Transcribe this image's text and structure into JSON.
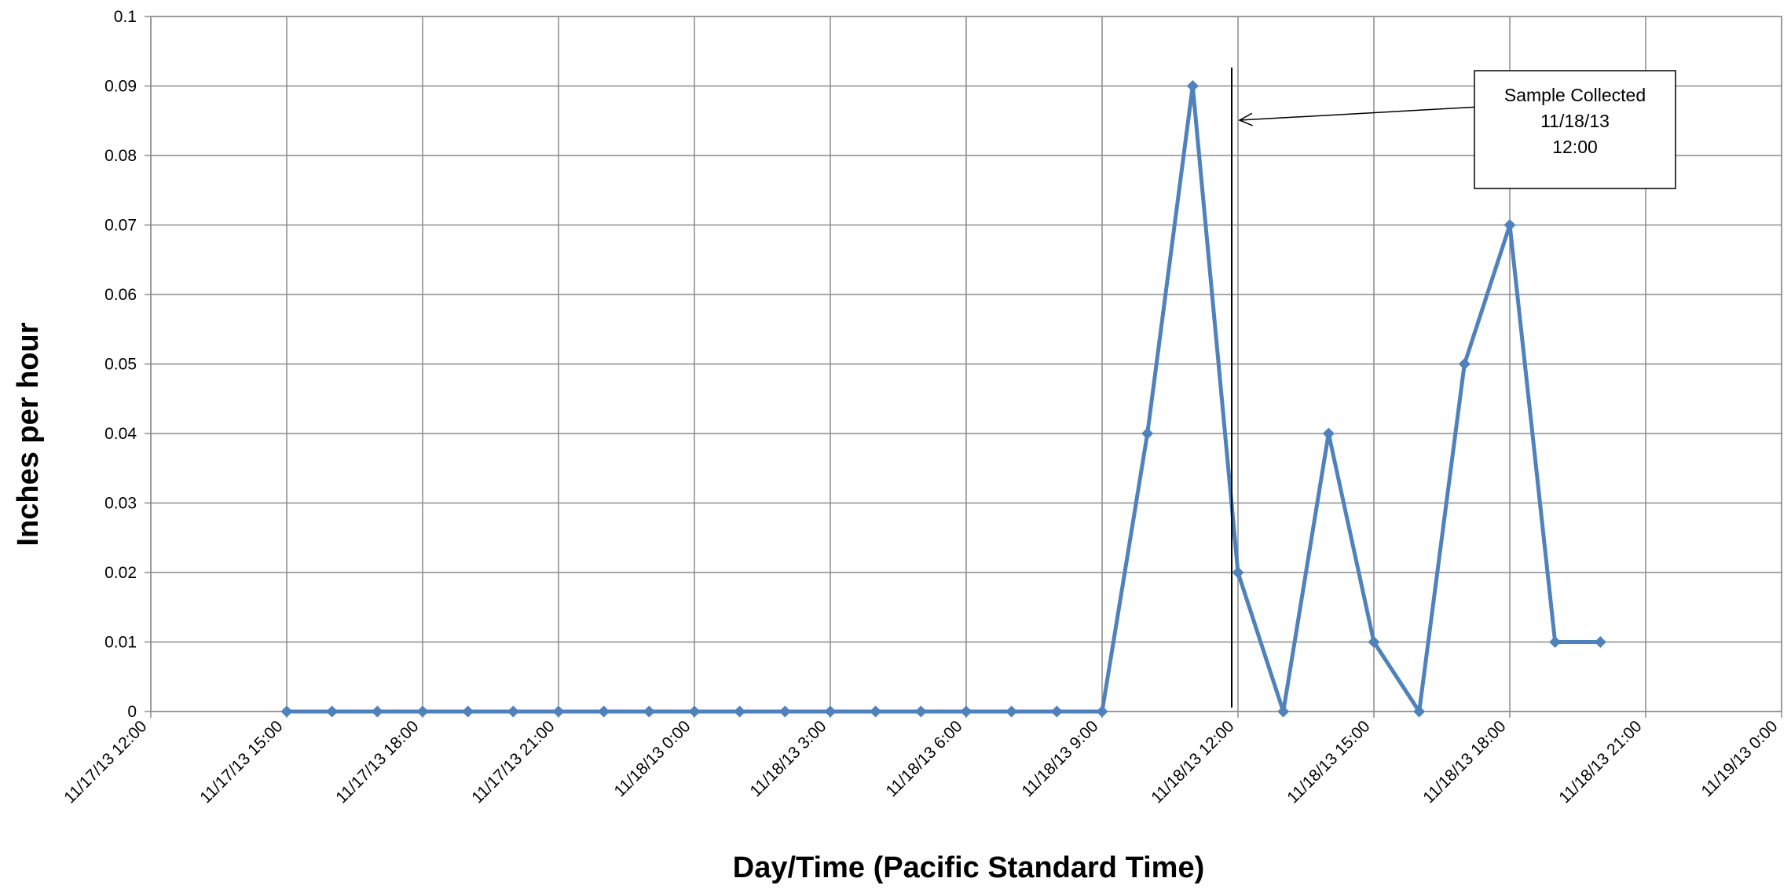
{
  "chart_data": {
    "type": "line",
    "title": "",
    "xlabel": "Day/Time (Pacific Standard Time)",
    "ylabel": "Inches per hour",
    "ylim": [
      0,
      0.1
    ],
    "xlim": [
      "2013-11-17T12:00",
      "2013-11-19T00:00"
    ],
    "grid": true,
    "y_ticks": [
      "0",
      "0.01",
      "0.02",
      "0.03",
      "0.04",
      "0.05",
      "0.06",
      "0.07",
      "0.08",
      "0.09",
      "0.1"
    ],
    "x_ticks": [
      {
        "t": "2013-11-17T12:00",
        "label": "11/17/13 12:00"
      },
      {
        "t": "2013-11-17T15:00",
        "label": "11/17/13 15:00"
      },
      {
        "t": "2013-11-17T18:00",
        "label": "11/17/13 18:00"
      },
      {
        "t": "2013-11-17T21:00",
        "label": "11/17/13 21:00"
      },
      {
        "t": "2013-11-18T00:00",
        "label": "11/18/13 0:00"
      },
      {
        "t": "2013-11-18T03:00",
        "label": "11/18/13 3:00"
      },
      {
        "t": "2013-11-18T06:00",
        "label": "11/18/13 6:00"
      },
      {
        "t": "2013-11-18T09:00",
        "label": "11/18/13 9:00"
      },
      {
        "t": "2013-11-18T12:00",
        "label": "11/18/13 12:00"
      },
      {
        "t": "2013-11-18T15:00",
        "label": "11/18/13 15:00"
      },
      {
        "t": "2013-11-18T18:00",
        "label": "11/18/13 18:00"
      },
      {
        "t": "2013-11-18T21:00",
        "label": "11/18/13 21:00"
      },
      {
        "t": "2013-11-19T00:00",
        "label": "11/19/13 0:00"
      }
    ],
    "series": [
      {
        "color": "#4f81bd",
        "points": [
          {
            "x": "2013-11-17T15:00",
            "y": 0
          },
          {
            "x": "2013-11-17T16:00",
            "y": 0
          },
          {
            "x": "2013-11-17T17:00",
            "y": 0
          },
          {
            "x": "2013-11-17T18:00",
            "y": 0
          },
          {
            "x": "2013-11-17T19:00",
            "y": 0
          },
          {
            "x": "2013-11-17T20:00",
            "y": 0
          },
          {
            "x": "2013-11-17T21:00",
            "y": 0
          },
          {
            "x": "2013-11-17T22:00",
            "y": 0
          },
          {
            "x": "2013-11-17T23:00",
            "y": 0
          },
          {
            "x": "2013-11-18T00:00",
            "y": 0
          },
          {
            "x": "2013-11-18T01:00",
            "y": 0
          },
          {
            "x": "2013-11-18T02:00",
            "y": 0
          },
          {
            "x": "2013-11-18T03:00",
            "y": 0
          },
          {
            "x": "2013-11-18T04:00",
            "y": 0
          },
          {
            "x": "2013-11-18T05:00",
            "y": 0
          },
          {
            "x": "2013-11-18T06:00",
            "y": 0
          },
          {
            "x": "2013-11-18T07:00",
            "y": 0
          },
          {
            "x": "2013-11-18T08:00",
            "y": 0
          },
          {
            "x": "2013-11-18T09:00",
            "y": 0
          },
          {
            "x": "2013-11-18T10:00",
            "y": 0.04
          },
          {
            "x": "2013-11-18T11:00",
            "y": 0.09
          },
          {
            "x": "2013-11-18T12:00",
            "y": 0.02
          },
          {
            "x": "2013-11-18T13:00",
            "y": 0
          },
          {
            "x": "2013-11-18T14:00",
            "y": 0.04
          },
          {
            "x": "2013-11-18T15:00",
            "y": 0.01
          },
          {
            "x": "2013-11-18T16:00",
            "y": 0
          },
          {
            "x": "2013-11-18T17:00",
            "y": 0.05
          },
          {
            "x": "2013-11-18T18:00",
            "y": 0.07
          },
          {
            "x": "2013-11-18T19:00",
            "y": 0.01
          },
          {
            "x": "2013-11-18T20:00",
            "y": 0.01
          }
        ]
      }
    ],
    "annotation": {
      "lines": [
        "Sample Collected",
        "11/18/13",
        "12:00"
      ],
      "target_x": "2013-11-18T12:00"
    }
  }
}
